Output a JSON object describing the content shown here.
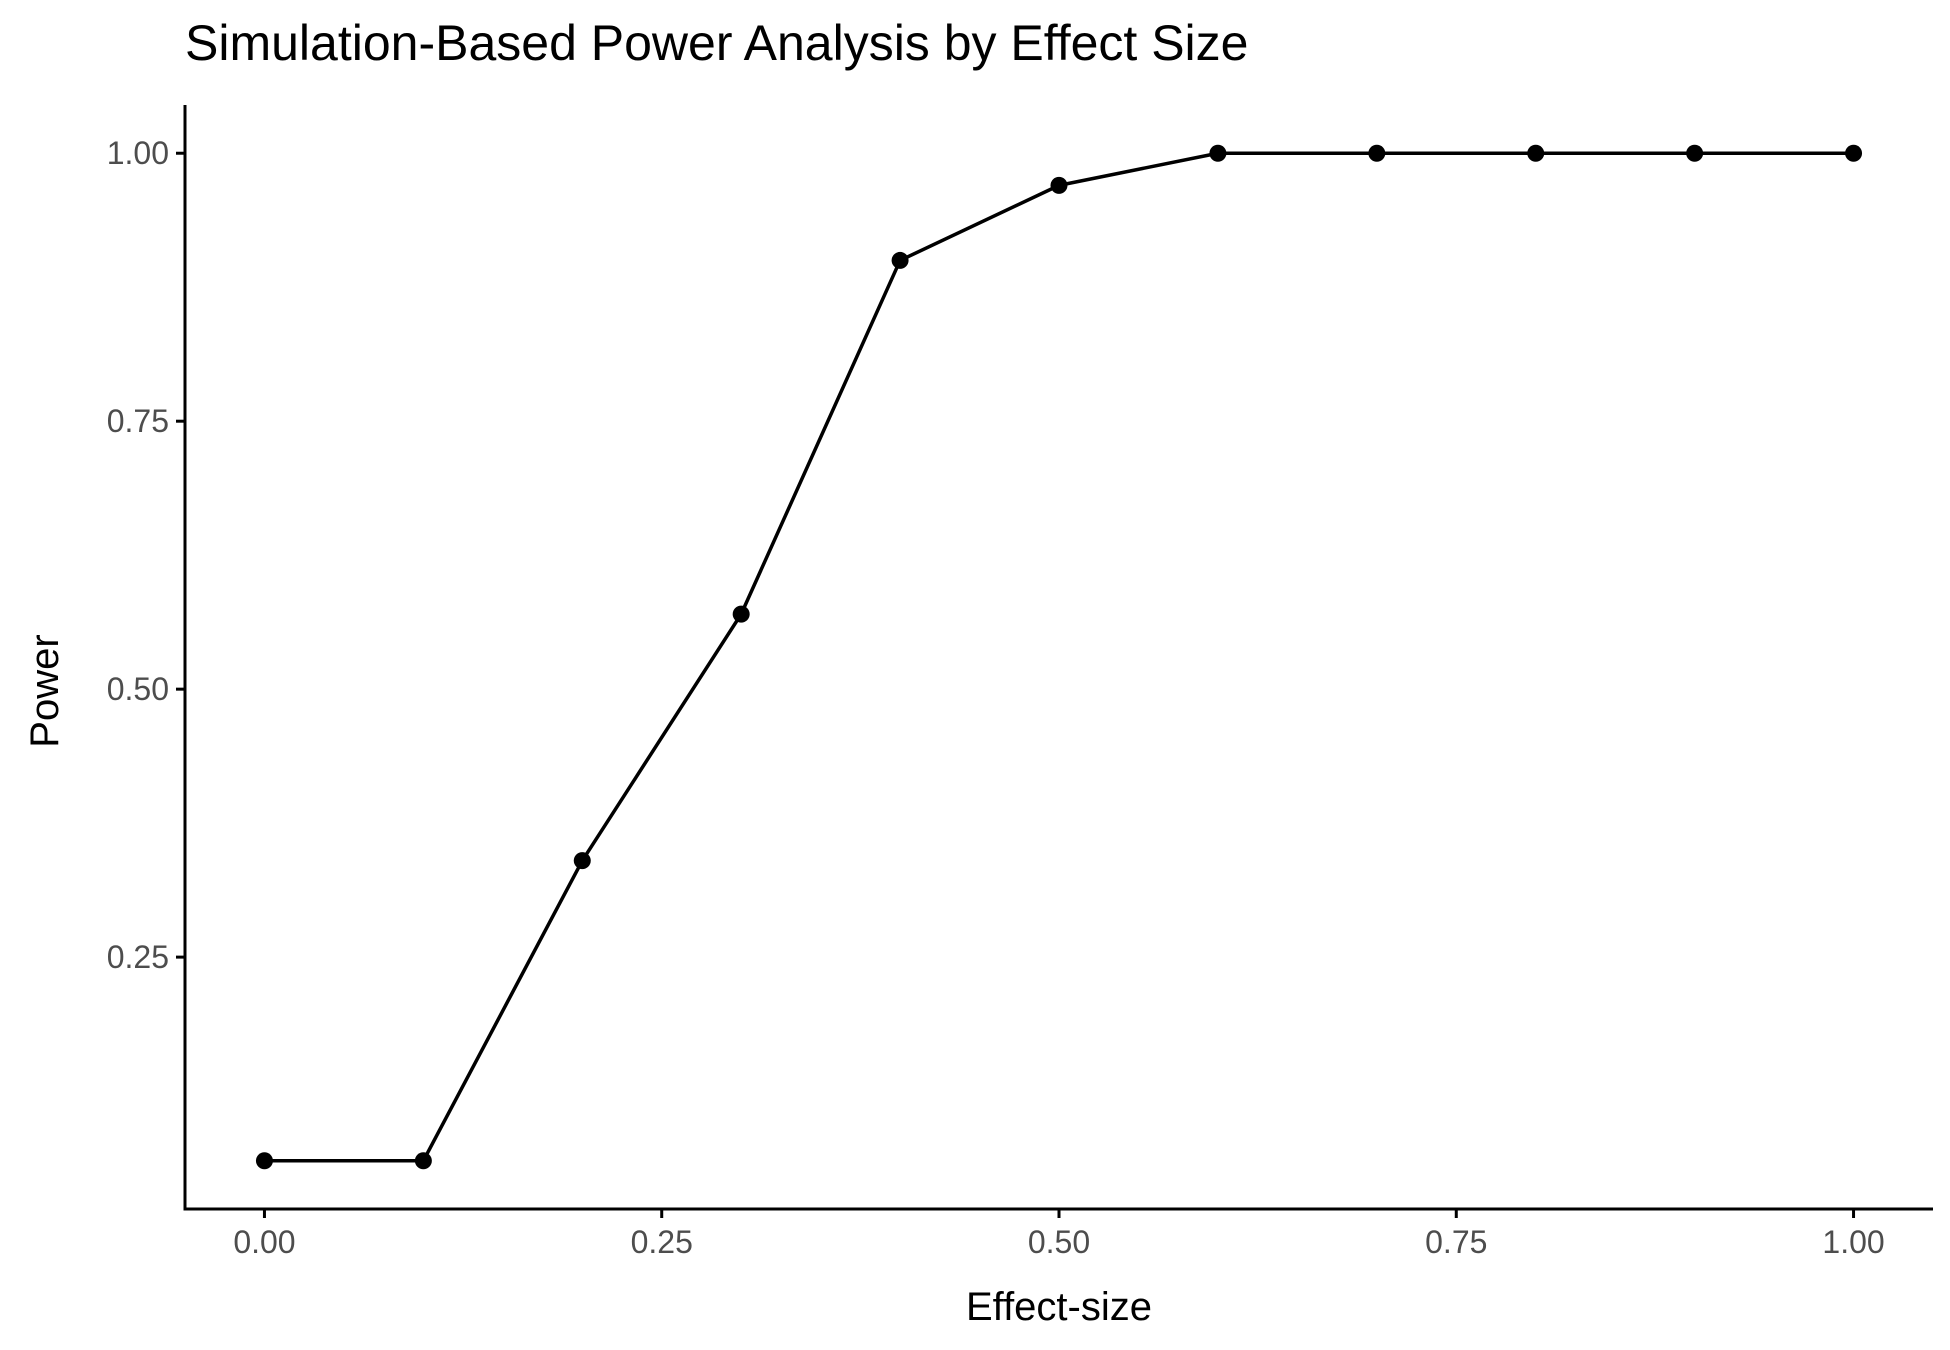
{
  "chart_data": {
    "type": "line",
    "title": "Simulation-Based Power Analysis by Effect Size",
    "xlabel": "Effect-size",
    "ylabel": "Power",
    "x": [
      0.0,
      0.1,
      0.2,
      0.3,
      0.4,
      0.5,
      0.6,
      0.7,
      0.8,
      0.9,
      1.0
    ],
    "series": [
      {
        "values": [
          0.06,
          0.06,
          0.34,
          0.57,
          0.9,
          0.97,
          1.0,
          1.0,
          1.0,
          1.0,
          1.0
        ]
      }
    ],
    "xlim": [
      -0.05,
      1.05
    ],
    "ylim": [
      0.015,
      1.045
    ],
    "xticks": [
      {
        "value": 0.0,
        "label": "0.00"
      },
      {
        "value": 0.25,
        "label": "0.25"
      },
      {
        "value": 0.5,
        "label": "0.50"
      },
      {
        "value": 0.75,
        "label": "0.75"
      },
      {
        "value": 1.0,
        "label": "1.00"
      }
    ],
    "yticks": [
      {
        "value": 0.25,
        "label": "0.25"
      },
      {
        "value": 0.5,
        "label": "0.50"
      },
      {
        "value": 0.75,
        "label": "0.75"
      },
      {
        "value": 1.0,
        "label": "1.00"
      }
    ],
    "grid": false,
    "legend": "none",
    "line_color": "#000000",
    "point_color": "#000000"
  }
}
